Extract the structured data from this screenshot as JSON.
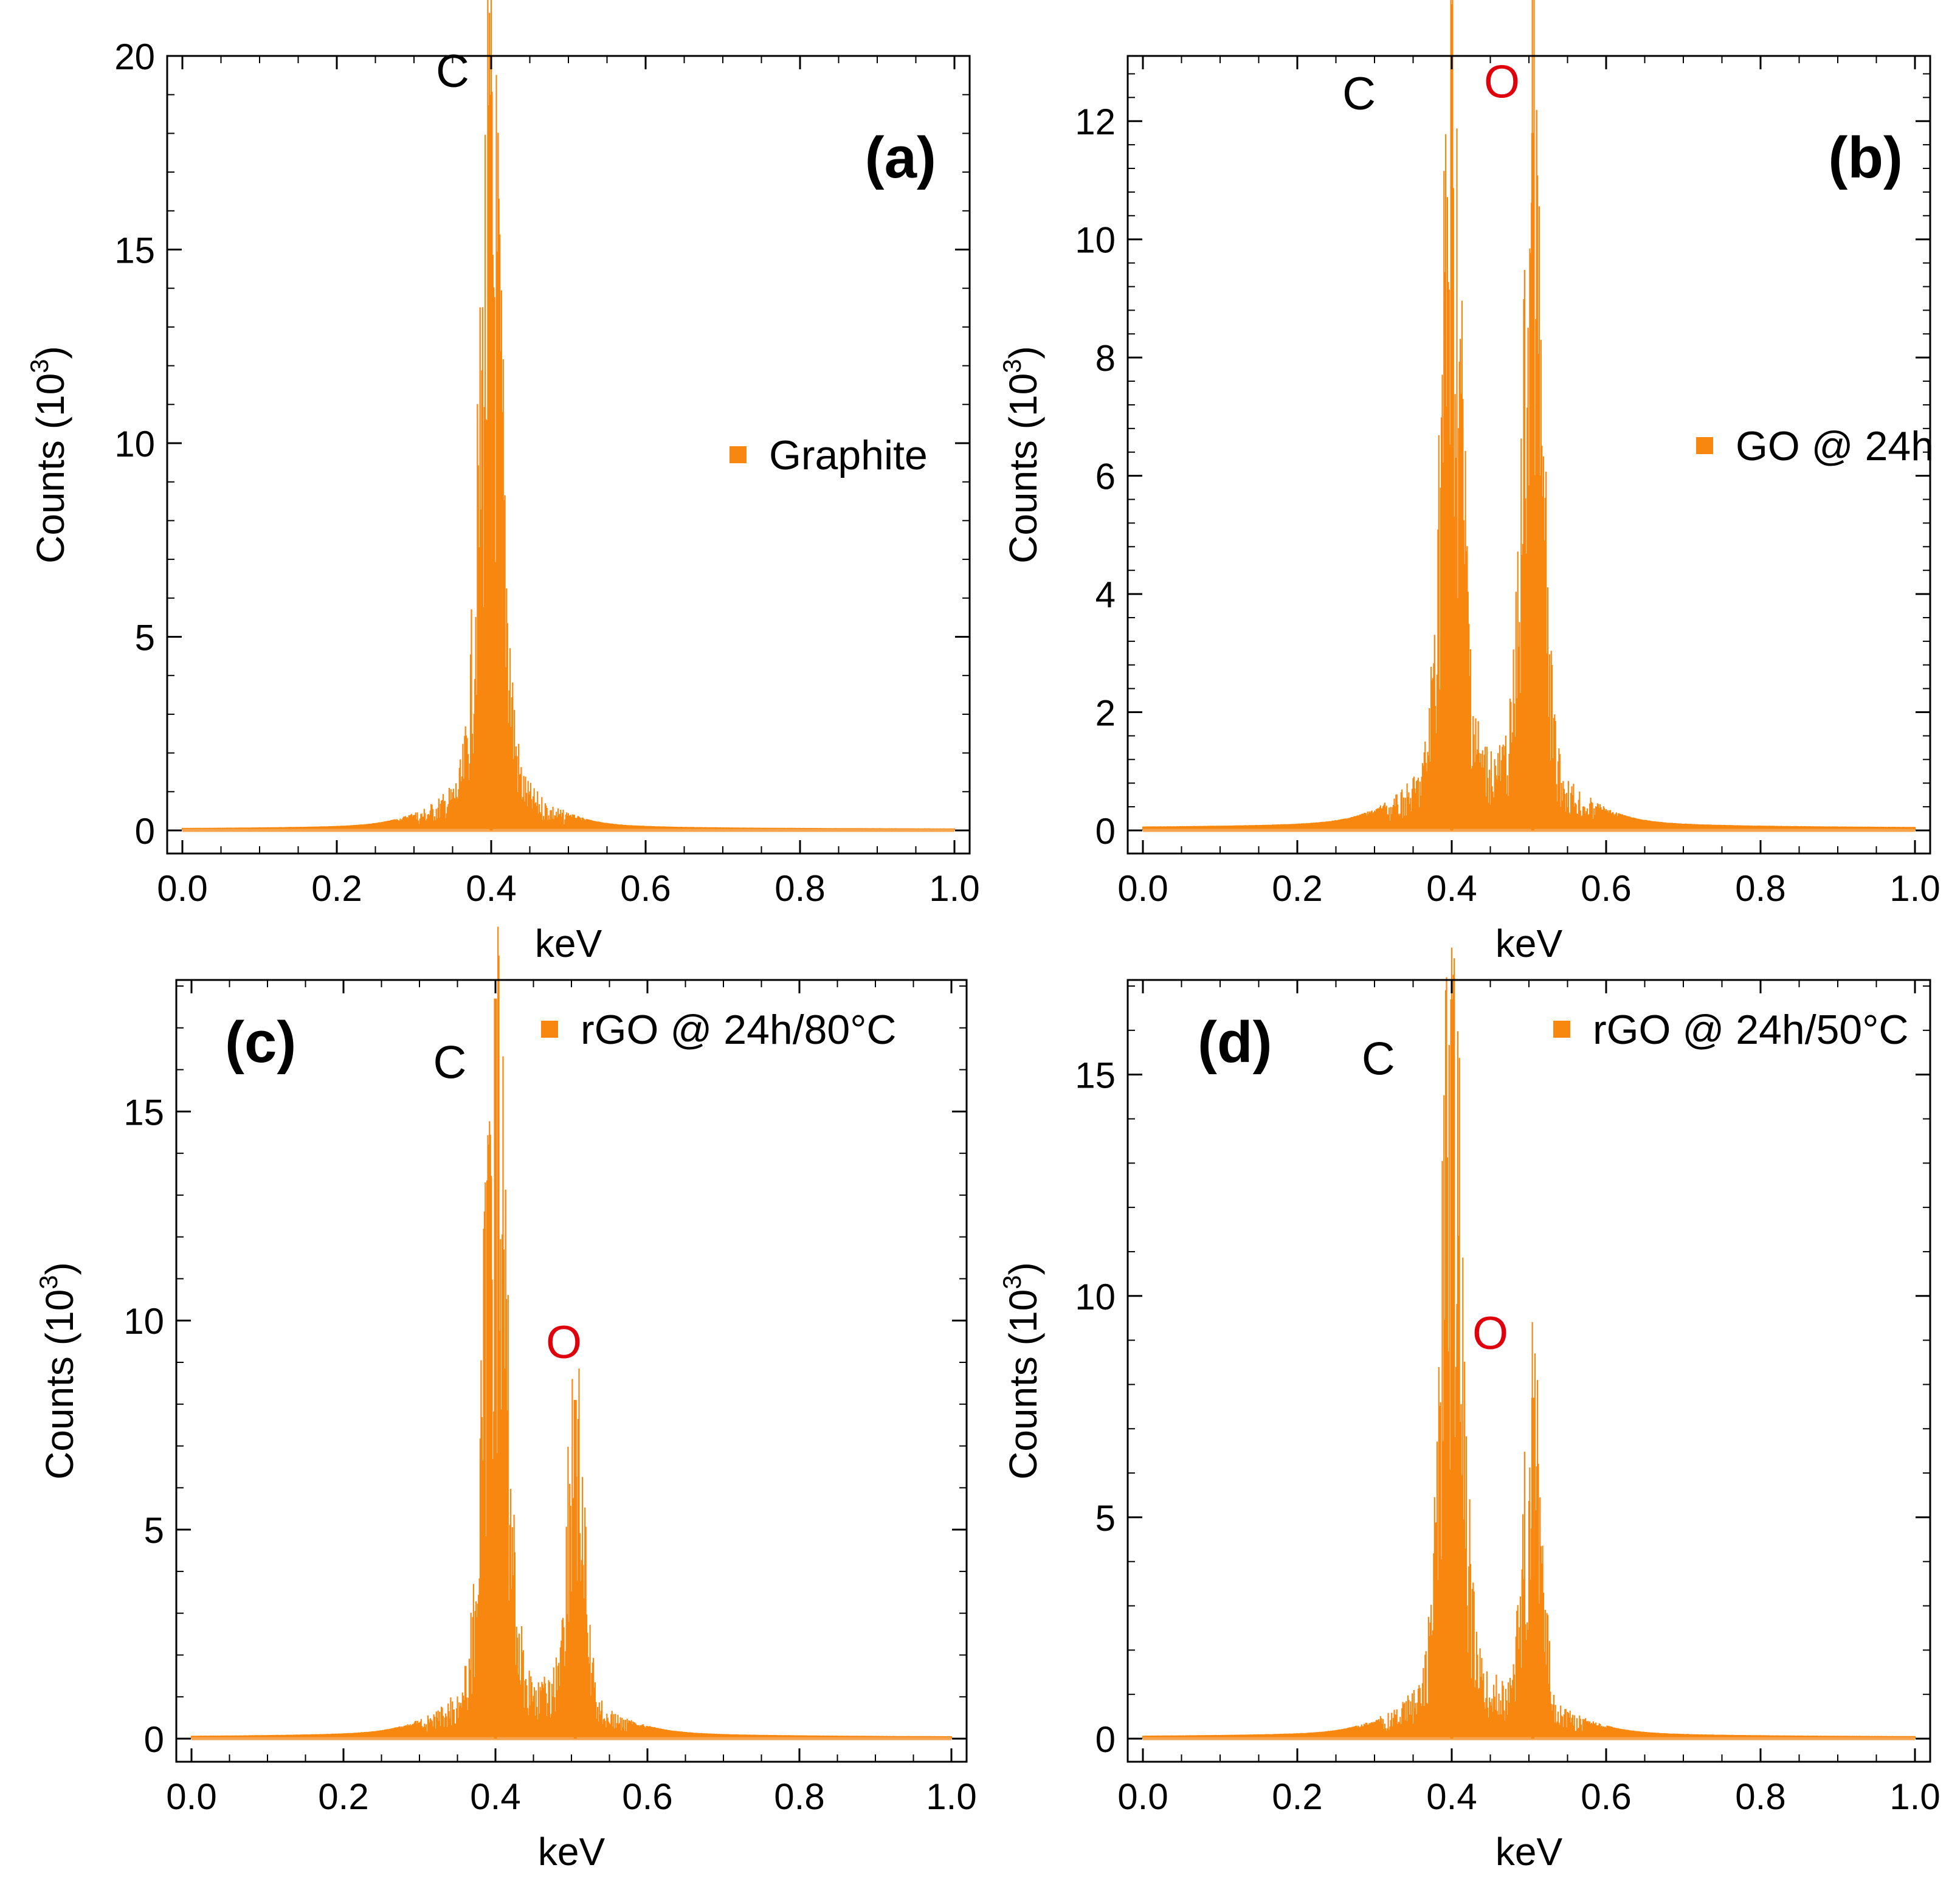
{
  "colors": {
    "spectrum": "#f7870f",
    "baseline": "#f5a54f",
    "carbon_label": "#000000",
    "oxygen_label": "#e0000c",
    "frame": "#000000"
  },
  "chart_data": [
    {
      "type": "area",
      "panel": "(a)",
      "legend": "Graphite",
      "legend_position": "right-middle",
      "xlabel": "keV",
      "ylabel": "Counts (10",
      "ylabel_sup": "3",
      "ylabel_close": ")",
      "xlim": [
        0,
        1.0
      ],
      "ylim": [
        0,
        20
      ],
      "xticks": [
        "0.0",
        "0.2",
        "0.4",
        "0.6",
        "0.8",
        "1.0"
      ],
      "yticks": [
        "0",
        "5",
        "10",
        "15",
        "20"
      ],
      "peaks": [
        {
          "element": "C",
          "energy": 0.4,
          "height": 19.0,
          "width": 0.014
        }
      ],
      "peak_labels": [
        {
          "text": "C",
          "element": "carbon",
          "x": 0.35,
          "y": 19.2
        }
      ]
    },
    {
      "type": "area",
      "panel": "(b)",
      "legend": "GO @ 24h",
      "legend_position": "right-middle",
      "xlabel": "keV",
      "ylabel": "Counts (10",
      "ylabel_sup": "3",
      "ylabel_close": ")",
      "xlim": [
        0,
        1.0
      ],
      "ylim": [
        0,
        13
      ],
      "xticks": [
        "0.0",
        "0.2",
        "0.4",
        "0.6",
        "0.8",
        "1.0"
      ],
      "yticks": [
        "0",
        "2",
        "4",
        "6",
        "8",
        "10",
        "12"
      ],
      "peaks": [
        {
          "element": "C",
          "energy": 0.4,
          "height": 12.6,
          "width": 0.013
        },
        {
          "element": "O",
          "energy": 0.505,
          "height": 11.8,
          "width": 0.012
        }
      ],
      "peak_labels": [
        {
          "text": "C",
          "element": "carbon",
          "x": 0.28,
          "y": 12.2
        },
        {
          "text": "O",
          "element": "oxygen",
          "x": 0.465,
          "y": 12.4
        }
      ]
    },
    {
      "type": "area",
      "panel": "(c)",
      "legend": "rGO @ 24h/80°C",
      "legend_position": "top-right",
      "xlabel": "keV",
      "ylabel": "Counts (10",
      "ylabel_sup": "3",
      "ylabel_close": ")",
      "xlim": [
        0,
        1.0
      ],
      "ylim": [
        0,
        18
      ],
      "xticks": [
        "0.0",
        "0.2",
        "0.4",
        "0.6",
        "0.8",
        "1.0"
      ],
      "yticks": [
        "0",
        "5",
        "10",
        "15"
      ],
      "peaks": [
        {
          "element": "C",
          "energy": 0.4,
          "height": 17.7,
          "width": 0.014
        },
        {
          "element": "O",
          "energy": 0.505,
          "height": 8.1,
          "width": 0.011
        }
      ],
      "peak_labels": [
        {
          "text": "C",
          "element": "carbon",
          "x": 0.34,
          "y": 15.8
        },
        {
          "text": "O",
          "element": "oxygen",
          "x": 0.49,
          "y": 9.1
        }
      ]
    },
    {
      "type": "area",
      "panel": "(d)",
      "legend": "rGO @ 24h/50°C",
      "legend_position": "top-right",
      "xlabel": "keV",
      "ylabel": "Counts (10",
      "ylabel_sup": "3",
      "ylabel_close": ")",
      "xlim": [
        0,
        1.0
      ],
      "ylim": [
        0,
        17
      ],
      "xticks": [
        "0.0",
        "0.2",
        "0.4",
        "0.6",
        "0.8",
        "1.0"
      ],
      "yticks": [
        "0",
        "5",
        "10",
        "15"
      ],
      "peaks": [
        {
          "element": "C",
          "energy": 0.4,
          "height": 16.7,
          "width": 0.013
        },
        {
          "element": "O",
          "energy": 0.505,
          "height": 7.7,
          "width": 0.011
        }
      ],
      "peak_labels": [
        {
          "text": "C",
          "element": "carbon",
          "x": 0.305,
          "y": 15.0
        },
        {
          "text": "O",
          "element": "oxygen",
          "x": 0.45,
          "y": 8.8
        }
      ]
    }
  ]
}
